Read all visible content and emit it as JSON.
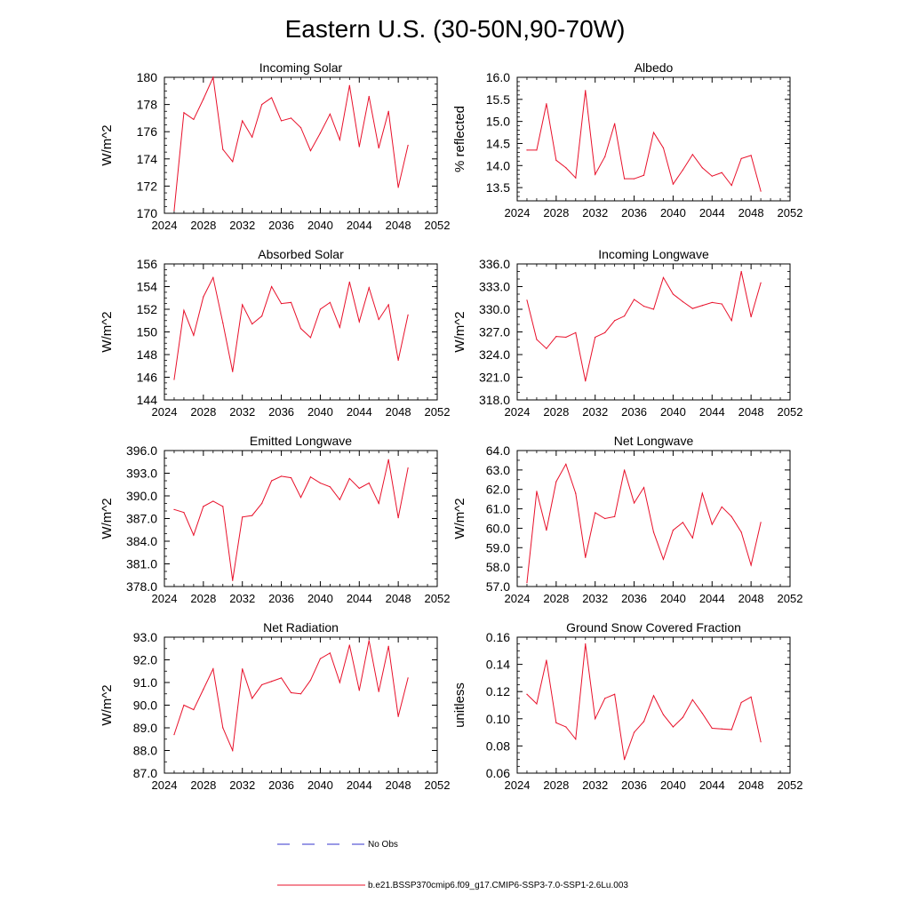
{
  "title": "Eastern U.S. (30-50N,90-70W)",
  "legend": {
    "no_obs_label": "No Obs",
    "model_label": "b.e21.BSSP370cmip6.f09_g17.CMIP6-SSP3-7.0-SSP1-2.6Lu.003",
    "obs_color": "#3333cc",
    "model_color": "#e8102a"
  },
  "chart_data": [
    {
      "type": "line",
      "title": "Incoming Solar",
      "ylabel": "W/m^2",
      "xlim": [
        2024,
        2052
      ],
      "ylim": [
        170,
        180
      ],
      "xticks": [
        2024,
        2028,
        2032,
        2036,
        2040,
        2044,
        2048,
        2052
      ],
      "yticks": [
        "170",
        "172",
        "174",
        "176",
        "178",
        "180"
      ],
      "yminor": 0.5,
      "x": [
        2025,
        2026,
        2027,
        2028,
        2029,
        2030,
        2031,
        2032,
        2033,
        2034,
        2035,
        2036,
        2037,
        2038,
        2039,
        2040,
        2041,
        2042,
        2043,
        2044,
        2045,
        2046,
        2047,
        2048,
        2049
      ],
      "values": [
        170.2,
        177.4,
        176.9,
        178.4,
        180.0,
        174.7,
        173.8,
        176.8,
        175.6,
        178.0,
        178.5,
        176.8,
        177.0,
        176.3,
        174.6,
        175.9,
        177.3,
        175.4,
        179.4,
        174.9,
        178.6,
        174.8,
        177.5,
        171.9,
        175.0
      ]
    },
    {
      "type": "line",
      "title": "Albedo",
      "ylabel": "% reflected",
      "xlim": [
        2024,
        2052
      ],
      "ylim": [
        13.2,
        16.0
      ],
      "xticks": [
        2024,
        2028,
        2032,
        2036,
        2040,
        2044,
        2048,
        2052
      ],
      "yticks": [
        "13.5",
        "14.0",
        "14.5",
        "15.0",
        "15.5",
        "16.0"
      ],
      "yminor": 0.1,
      "x": [
        2025,
        2026,
        2027,
        2028,
        2029,
        2030,
        2031,
        2032,
        2033,
        2034,
        2035,
        2036,
        2037,
        2038,
        2039,
        2040,
        2041,
        2042,
        2043,
        2044,
        2045,
        2046,
        2047,
        2048,
        2049
      ],
      "values": [
        14.35,
        14.35,
        15.4,
        14.12,
        13.95,
        13.72,
        15.7,
        13.8,
        14.2,
        14.95,
        13.7,
        13.7,
        13.78,
        14.75,
        14.4,
        13.58,
        13.9,
        14.25,
        13.95,
        13.76,
        13.84,
        13.55,
        14.16,
        14.23,
        13.42
      ]
    },
    {
      "type": "line",
      "title": "Absorbed Solar",
      "ylabel": "W/m^2",
      "xlim": [
        2024,
        2052
      ],
      "ylim": [
        144,
        156
      ],
      "xticks": [
        2024,
        2028,
        2032,
        2036,
        2040,
        2044,
        2048,
        2052
      ],
      "yticks": [
        "144",
        "146",
        "148",
        "150",
        "152",
        "154",
        "156"
      ],
      "yminor": 0.5,
      "x": [
        2025,
        2026,
        2027,
        2028,
        2029,
        2030,
        2031,
        2032,
        2033,
        2034,
        2035,
        2036,
        2037,
        2038,
        2039,
        2040,
        2041,
        2042,
        2043,
        2044,
        2045,
        2046,
        2047,
        2048,
        2049
      ],
      "values": [
        145.8,
        151.9,
        149.7,
        153.1,
        154.8,
        150.8,
        146.5,
        152.4,
        150.7,
        151.4,
        154.0,
        152.5,
        152.6,
        150.3,
        149.5,
        152.0,
        152.6,
        150.4,
        154.4,
        150.9,
        153.9,
        151.1,
        152.4,
        147.5,
        151.5
      ]
    },
    {
      "type": "line",
      "title": "Incoming Longwave",
      "ylabel": "W/m^2",
      "xlim": [
        2024,
        2052
      ],
      "ylim": [
        318,
        336
      ],
      "xticks": [
        2024,
        2028,
        2032,
        2036,
        2040,
        2044,
        2048,
        2052
      ],
      "yticks": [
        "318.0",
        "321.0",
        "324.0",
        "327.0",
        "330.0",
        "333.0",
        "336.0"
      ],
      "yminor": 1,
      "x": [
        2025,
        2026,
        2027,
        2028,
        2029,
        2030,
        2031,
        2032,
        2033,
        2034,
        2035,
        2036,
        2037,
        2038,
        2039,
        2040,
        2041,
        2042,
        2043,
        2044,
        2045,
        2046,
        2047,
        2048,
        2049
      ],
      "values": [
        331.2,
        326.0,
        324.8,
        326.4,
        326.3,
        326.9,
        320.5,
        326.3,
        326.9,
        328.5,
        329.1,
        331.3,
        330.4,
        330.0,
        334.2,
        332.0,
        331.0,
        330.1,
        330.5,
        330.9,
        330.7,
        328.5,
        335.0,
        329.0,
        333.5
      ]
    },
    {
      "type": "line",
      "title": "Emitted Longwave",
      "ylabel": "W/m^2",
      "xlim": [
        2024,
        2052
      ],
      "ylim": [
        378,
        396
      ],
      "xticks": [
        2024,
        2028,
        2032,
        2036,
        2040,
        2044,
        2048,
        2052
      ],
      "yticks": [
        "378.0",
        "381.0",
        "384.0",
        "387.0",
        "390.0",
        "393.0",
        "396.0"
      ],
      "yminor": 1,
      "x": [
        2025,
        2026,
        2027,
        2028,
        2029,
        2030,
        2031,
        2032,
        2033,
        2034,
        2035,
        2036,
        2037,
        2038,
        2039,
        2040,
        2041,
        2042,
        2043,
        2044,
        2045,
        2046,
        2047,
        2048,
        2049
      ],
      "values": [
        388.2,
        387.8,
        384.8,
        388.6,
        389.3,
        388.6,
        378.8,
        387.2,
        387.4,
        389.0,
        392.0,
        392.6,
        392.4,
        389.8,
        392.5,
        391.7,
        391.2,
        389.5,
        392.3,
        391.0,
        391.7,
        389.0,
        394.8,
        387.1,
        393.7
      ]
    },
    {
      "type": "line",
      "title": "Net Longwave",
      "ylabel": "W/m^2",
      "xlim": [
        2024,
        2052
      ],
      "ylim": [
        57,
        64
      ],
      "xticks": [
        2024,
        2028,
        2032,
        2036,
        2040,
        2044,
        2048,
        2052
      ],
      "yticks": [
        "57.0",
        "58.0",
        "59.0",
        "60.0",
        "61.0",
        "62.0",
        "63.0",
        "64.0"
      ],
      "yminor": 0.5,
      "x": [
        2025,
        2026,
        2027,
        2028,
        2029,
        2030,
        2031,
        2032,
        2033,
        2034,
        2035,
        2036,
        2037,
        2038,
        2039,
        2040,
        2041,
        2042,
        2043,
        2044,
        2045,
        2046,
        2047,
        2048,
        2049
      ],
      "values": [
        57.2,
        61.9,
        59.9,
        62.4,
        63.3,
        61.8,
        58.5,
        60.8,
        60.5,
        60.6,
        63.0,
        61.3,
        62.1,
        59.8,
        58.4,
        59.9,
        60.3,
        59.5,
        61.8,
        60.2,
        61.1,
        60.6,
        59.8,
        58.1,
        60.3
      ]
    },
    {
      "type": "line",
      "title": "Net Radiation",
      "ylabel": "W/m^2",
      "xlim": [
        2024,
        2052
      ],
      "ylim": [
        87,
        93
      ],
      "xticks": [
        2024,
        2028,
        2032,
        2036,
        2040,
        2044,
        2048,
        2052
      ],
      "yticks": [
        "87.0",
        "88.0",
        "89.0",
        "90.0",
        "91.0",
        "92.0",
        "93.0"
      ],
      "yminor": 0.5,
      "x": [
        2025,
        2026,
        2027,
        2028,
        2029,
        2030,
        2031,
        2032,
        2033,
        2034,
        2035,
        2036,
        2037,
        2038,
        2039,
        2040,
        2041,
        2042,
        2043,
        2044,
        2045,
        2046,
        2047,
        2048,
        2049
      ],
      "values": [
        88.7,
        90.0,
        89.8,
        90.7,
        91.6,
        89.0,
        88.0,
        91.6,
        90.3,
        90.9,
        91.05,
        91.2,
        90.55,
        90.5,
        91.1,
        92.05,
        92.3,
        91.0,
        92.65,
        90.65,
        92.85,
        90.6,
        92.6,
        89.5,
        91.2
      ]
    },
    {
      "type": "line",
      "title": "Ground Snow Covered Fraction",
      "ylabel": "unitless",
      "xlim": [
        2024,
        2052
      ],
      "ylim": [
        0.06,
        0.16
      ],
      "xticks": [
        2024,
        2028,
        2032,
        2036,
        2040,
        2044,
        2048,
        2052
      ],
      "yticks": [
        "0.06",
        "0.08",
        "0.10",
        "0.12",
        "0.14",
        "0.16"
      ],
      "yminor": 0.005,
      "x": [
        2025,
        2026,
        2027,
        2028,
        2029,
        2030,
        2031,
        2032,
        2033,
        2034,
        2035,
        2036,
        2037,
        2038,
        2039,
        2040,
        2041,
        2042,
        2043,
        2044,
        2045,
        2046,
        2047,
        2048,
        2049
      ],
      "values": [
        0.118,
        0.111,
        0.143,
        0.097,
        0.094,
        0.085,
        0.155,
        0.1,
        0.115,
        0.118,
        0.07,
        0.09,
        0.098,
        0.117,
        0.103,
        0.094,
        0.101,
        0.114,
        0.104,
        0.093,
        0.0925,
        0.092,
        0.112,
        0.116,
        0.083
      ]
    }
  ]
}
